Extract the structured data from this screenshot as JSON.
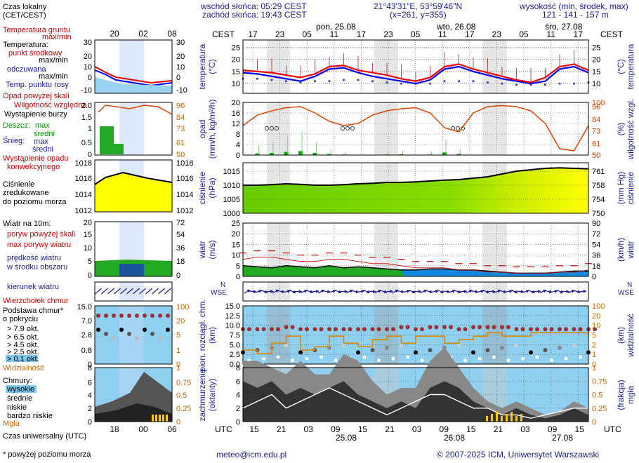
{
  "header": {
    "sunrise": "wschód słońca: 05:29 CEST",
    "sunset": "zachód słońca: 19:43 CEST",
    "coords": "21°43'31\"E, 53°59'46\"N",
    "grid": "(x=261,  y=355)",
    "height_label": "wysokość (min, środek, max)",
    "height_values": "121 - 141 - 157 m"
  },
  "time": {
    "tz_top": "CEST",
    "tz_bottom": "UTC",
    "local_ticks": [
      "17",
      "23",
      "05",
      "11",
      "17",
      "23",
      "05",
      "11",
      "17",
      "23",
      "05",
      "11",
      "17"
    ],
    "utc_ticks": [
      "15",
      "21",
      "03",
      "09",
      "15",
      "21",
      "03",
      "09",
      "15",
      "21",
      "03",
      "09",
      "15"
    ],
    "days_top": [
      "pon, 25.08",
      "wto, 26.08",
      "śro, 27.08"
    ],
    "days_bottom": [
      "25.08",
      "26.08",
      "27.08"
    ],
    "legend_local_ticks": [
      "20",
      "02",
      "08"
    ],
    "legend_utc_ticks": [
      "18",
      "00",
      "06"
    ]
  },
  "legend": {
    "local_time": "Czas lokalny",
    "local_time2": "(CET/CEST)",
    "ground_temp": "Temperatura gruntu",
    "ground_temp2": "max/min",
    "temp_title": "Temperatura:",
    "temp_mid": "punkt środkowy",
    "temp_mid2": "max/min",
    "temp_felt": "odczuwana",
    "temp_felt2": "max/min",
    "dew": "Temp. punktu rosy",
    "precip_above": "Opad powyżej skali",
    "humidity": "Wilgotność względna",
    "storm": "Wystąpienie burzy",
    "rain": "Deszcz:",
    "rain_max": "max",
    "rain_mean": "średni",
    "snow": "Śnieg:",
    "snow_max": "max",
    "snow_mean": "średni",
    "precip_occ": "Wystąpienie opadu",
    "precip_occ2": "konwekcyjnego",
    "pressure1": "Ciśnienie",
    "pressure2": "zredukowane",
    "pressure3": "do poziomu morza",
    "wind_title": "Wiatr na 10m:",
    "gust_above": "poryw powyżej skali",
    "gust_max": "max porywy wiatru",
    "wind_speed": "prędkość wiatru",
    "wind_speed2": "w środku obszaru",
    "wind_dir": "kierunek wiatru",
    "cloud_top": "Wierzchołek chmur",
    "cloud_base": "Podstawa chmur*",
    "cloud_base2": "o pokryciu",
    "okt79": "> 7.9 okt.",
    "okt65": "> 6.5 okt.",
    "okt45": "> 4.5 okt.",
    "okt25": "> 2.5 okt.",
    "okt01": "> 0.1 okt.",
    "visibility": "Widzialność",
    "clouds": "Chmury:",
    "cl_high": "wysokie",
    "cl_mid": "średnie",
    "cl_low": "niskie",
    "cl_vlow": "bardzo niskie",
    "fog": "Mgła",
    "utc_label": "Czas uniwersalny (UTC)",
    "footnote": "* powyżej poziomu morza"
  },
  "axes": {
    "temp_left": "temperatura",
    "temp_left2": "(°C)",
    "temp_right": "(°C)",
    "temp_right2": "temperatura",
    "precip_left": "opad",
    "precip_left2": "(mm/h, kg/m²/h)",
    "precip_right": "(%)",
    "precip_right2": "wilgotność wzgl.",
    "press_left": "ciśnienie",
    "press_left2": "(hPa)",
    "press_right": "(mm Hg)",
    "press_right2": "ciśnienie",
    "wind_left": "wiatr",
    "wind_left2": "(m/s)",
    "wind_right": "(km/h)",
    "wind_right2": "wiatr",
    "cloud_left": "pion. rozciągł. chm.",
    "cloud_left2": "(km)",
    "cloud_right": "(km)",
    "cloud_right2": "widzialność",
    "cover_left": "zachmurzenie",
    "cover_left2": "(oktanty)",
    "cover_right": "(frakcja)",
    "cover_right2": "mgła"
  },
  "footer": {
    "email": "meteo@icm.edu.pl",
    "copyright": "© 2007-2025 ICM, Uniwersytet Warszawski"
  },
  "chart_data": {
    "type": "line",
    "x_hours_local": [
      17,
      20,
      23,
      2,
      5,
      8,
      11,
      14,
      17,
      20,
      23,
      2,
      5,
      8,
      11,
      14,
      17,
      20,
      23,
      2,
      5,
      8,
      11,
      14,
      17
    ],
    "panels": [
      {
        "name": "temperature",
        "y_ticks_left": [
          10,
          15,
          20,
          25
        ],
        "y_ticks_right": [
          10,
          15,
          20,
          25
        ],
        "ylim": [
          6,
          28
        ],
        "series": [
          {
            "name": "punkt środkowy",
            "color": "#ee0000",
            "values": [
              15.5,
              15,
              14.5,
              13.5,
              12.5,
              14,
              17,
              17.5,
              15.5,
              14.5,
              13.5,
              12,
              11,
              12.5,
              17,
              18,
              16,
              14.5,
              13,
              11.5,
              10.5,
              12.5,
              17,
              18,
              15.5
            ]
          },
          {
            "name": "odczuwana",
            "color": "#0000ee",
            "values": [
              14.5,
              14,
              13,
              12,
              11,
              13,
              16,
              16.5,
              14.5,
              13,
              12,
              11,
              10,
              11.5,
              16,
              17,
              15,
              13.5,
              12,
              11,
              10,
              11,
              16,
              17,
              14.5
            ]
          },
          {
            "name": "Temp. punktu rosy",
            "color": "#4444cc",
            "values": [
              12,
              12,
              11.5,
              11,
              10.5,
              11,
              11,
              11.5,
              11.5,
              11,
              10.5,
              10,
              10,
              10,
              11,
              11,
              11,
              10.5,
              10,
              9.5,
              9.5,
              9.5,
              10,
              10,
              10.5
            ]
          }
        ]
      },
      {
        "name": "precipitation_humidity",
        "y_ticks_left": [
          0,
          4,
          8,
          12,
          16,
          20
        ],
        "y_ticks_right": [
          50,
          61,
          73,
          84,
          96,
          100
        ],
        "ylim_left": [
          0,
          20
        ],
        "ylim_right": [
          50,
          100
        ],
        "series": [
          {
            "name": "Wilgotność względna",
            "color": "#dd4400",
            "values": [
              78,
              88,
              92,
              95,
              96,
              90,
              82,
              78,
              80,
              88,
              92,
              94,
              95,
              90,
              76,
              72,
              90,
              96,
              97,
              96,
              92,
              80,
              56,
              54,
              78
            ]
          },
          {
            "name": "opad średni",
            "color": "#00aa00",
            "values": [
              0,
              0.6,
              0.8,
              1.2,
              1.5,
              0.8,
              0.4,
              0.2,
              0,
              0,
              0.2,
              0.3,
              0,
              0.2,
              1.0,
              0.4,
              0,
              0,
              0,
              0,
              0,
              0,
              0,
              0,
              0
            ]
          }
        ]
      },
      {
        "name": "pressure",
        "y_ticks_left": [
          1000,
          1005,
          1010,
          1015
        ],
        "y_ticks_right": [
          750,
          754,
          758,
          761
        ],
        "ylim": [
          1000,
          1018
        ],
        "series": [
          {
            "name": "ciśnienie",
            "color": "#000000",
            "values": [
              1010,
              1010,
              1010.2,
              1010.5,
              1010.3,
              1010,
              1010,
              1010.2,
              1010.5,
              1010.7,
              1011,
              1011,
              1011.2,
              1011.5,
              1011.8,
              1012,
              1012.5,
              1013,
              1014,
              1015,
              1015.5,
              1016,
              1016.2,
              1016,
              1015.8
            ]
          }
        ]
      },
      {
        "name": "wind",
        "y_ticks_left": [
          0,
          5,
          10,
          15,
          20,
          25
        ],
        "y_ticks_right": [
          0,
          18,
          36,
          54,
          72,
          90
        ],
        "ylim": [
          0,
          25
        ],
        "series": [
          {
            "name": "prędkość wiatru",
            "color": "#000000",
            "values": [
              5,
              4.5,
              4,
              5,
              4.5,
              4,
              5,
              4,
              4.5,
              4,
              3.5,
              3,
              3,
              3.5,
              3.5,
              3,
              3,
              2.5,
              2,
              1.5,
              1.5,
              1.5,
              2,
              2.5,
              2.5
            ]
          },
          {
            "name": "max porywy wiatru",
            "color": "#cc0000",
            "values": [
              11,
              12,
              12,
              11,
              10,
              10,
              11,
              11,
              10,
              9,
              9,
              8,
              7,
              7,
              7,
              6,
              6,
              5,
              5,
              4.5,
              4.5,
              4.5,
              5,
              5,
              6
            ]
          }
        ]
      },
      {
        "name": "clouds",
        "y_ticks_left": [
          0,
          2.5,
          5,
          7.5,
          10,
          12.5,
          15
        ],
        "y_ticks_right": [
          0,
          1,
          2,
          5,
          10,
          20,
          100
        ],
        "ylim": [
          0,
          15
        ],
        "series": [
          {
            "name": "Wierzchołek chmur",
            "color": "#993300",
            "values": [
              9,
              9,
              9,
              9.5,
              9,
              9,
              9,
              9,
              9,
              9,
              9,
              9.5,
              9,
              9.5,
              9.5,
              9,
              9.5,
              9.5,
              9.5,
              9,
              9,
              9,
              9,
              9,
              9
            ]
          },
          {
            "name": "Widzialność",
            "color": "#dd8800",
            "values": [
              4,
              3,
              6,
              8,
              4,
              5,
              8,
              6,
              5,
              7,
              8,
              6,
              8,
              8,
              6,
              7,
              8,
              9,
              8,
              8,
              9,
              9,
              9,
              9,
              8
            ]
          }
        ]
      },
      {
        "name": "cloud_cover",
        "y_ticks_left": [
          0,
          2,
          4,
          6,
          8
        ],
        "y_ticks_right": [
          0,
          0.25,
          0.5,
          0.75,
          1
        ],
        "ylim": [
          0,
          8
        ],
        "series": [
          {
            "name": "niskie",
            "color": "#333333",
            "values": [
              6,
              5,
              6,
              4,
              5,
              4,
              5,
              6,
              4,
              3,
              2,
              3,
              2,
              5,
              6,
              5,
              3,
              2,
              1,
              2,
              1,
              0.5,
              1,
              2,
              1
            ]
          },
          {
            "name": "średnie",
            "color": "#888888",
            "values": [
              3,
              4,
              2,
              3,
              4,
              3,
              2,
              4,
              5,
              3,
              2,
              2,
              3,
              4,
              5,
              3,
              2,
              1,
              1,
              1,
              1,
              0.5,
              0.5,
              1,
              1
            ]
          },
          {
            "name": "wysokie",
            "color": "#ffffff",
            "values": [
              2,
              3,
              4,
              2,
              3,
              4,
              5,
              4,
              3,
              2,
              1,
              2,
              3,
              4,
              4,
              3,
              2,
              2,
              1,
              1,
              0.5,
              1,
              1.5,
              2,
              2
            ]
          },
          {
            "name": "Mgła",
            "color": "#ffcc00",
            "values": [
              0,
              0,
              0,
              0,
              0,
              0,
              0,
              0,
              0,
              0,
              0,
              0,
              0,
              0,
              0,
              0,
              0,
              0,
              0.15,
              0.2,
              0.1,
              0,
              0,
              0,
              0
            ]
          }
        ]
      }
    ]
  }
}
